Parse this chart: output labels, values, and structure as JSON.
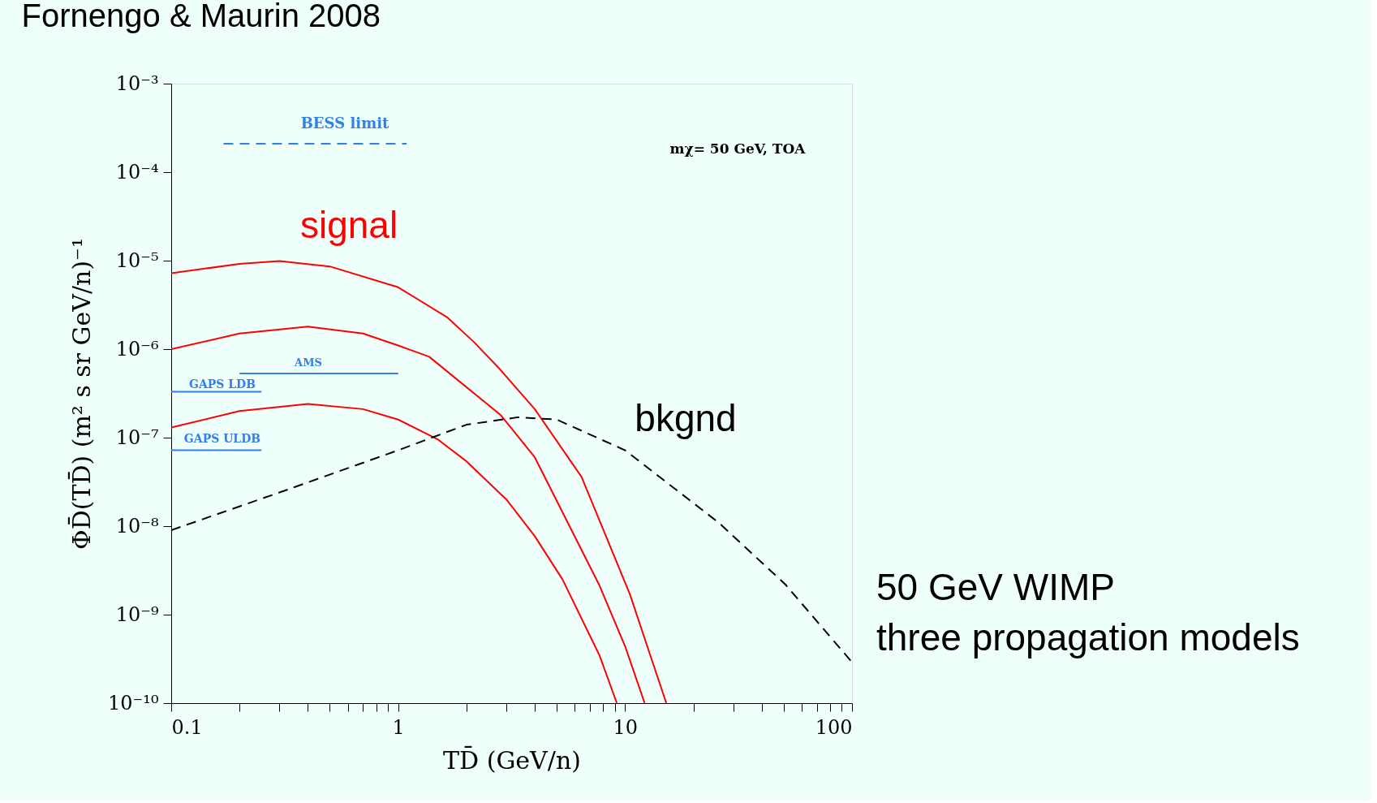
{
  "chart_data": {
    "type": "line",
    "title": "Fornengo & Maurin 2008",
    "xlabel": "TD̄  (GeV/n)",
    "ylabel": "ΦD̄(TD̄)   (m² s sr GeV/n)⁻¹",
    "log": "xy",
    "grid": false,
    "marker": "none",
    "xlim": [
      0.1,
      100
    ],
    "ylim": [
      1e-10,
      0.001
    ],
    "xticks": [
      0.1,
      {
        "value": 0.2,
        "label": null
      },
      {
        "value": 0.3,
        "label": null
      },
      {
        "value": 0.4,
        "label": null
      },
      {
        "value": 0.5,
        "label": null
      },
      {
        "value": 0.6,
        "label": null
      },
      {
        "value": 0.7,
        "label": null
      },
      {
        "value": 0.8,
        "label": null
      },
      {
        "value": 0.9,
        "label": null
      },
      1,
      {
        "value": 2,
        "label": null
      },
      {
        "value": 3,
        "label": null
      },
      {
        "value": 4,
        "label": null
      },
      {
        "value": 5,
        "label": null
      },
      {
        "value": 6,
        "label": null
      },
      {
        "value": 7,
        "label": null
      },
      {
        "value": 8,
        "label": null
      },
      {
        "value": 9,
        "label": null
      },
      10,
      {
        "value": 20,
        "label": null
      },
      {
        "value": 30,
        "label": null
      },
      {
        "value": 40,
        "label": null
      },
      {
        "value": 50,
        "label": null
      },
      {
        "value": 60,
        "label": null
      },
      {
        "value": 70,
        "label": null
      },
      {
        "value": 80,
        "label": null
      },
      {
        "value": 90,
        "label": null
      },
      100
    ],
    "yticks": [
      {
        "value": 1e-10,
        "label": "10⁻¹⁰"
      },
      {
        "value": 1e-09,
        "label": "10⁻⁹"
      },
      {
        "value": 1e-08,
        "label": "10⁻⁸"
      },
      {
        "value": 1e-07,
        "label": "10⁻⁷"
      },
      {
        "value": 1e-06,
        "label": "10⁻⁶"
      },
      {
        "value": 1e-05,
        "label": "10⁻⁵"
      },
      {
        "value": 0.0001,
        "label": "10⁻⁴"
      },
      {
        "value": 0.001,
        "label": "10⁻³"
      }
    ],
    "series": [
      {
        "color": "#ff0000",
        "line_style": "solid",
        "x": [
          0.1,
          0.2,
          0.3,
          0.5,
          1,
          1.64,
          2.16,
          2.83,
          4,
          6.43,
          10.5,
          13,
          15.2
        ],
        "values": [
          7.2e-06,
          9.2e-06,
          9.9e-06,
          8.6e-06,
          5e-06,
          2.3e-06,
          1.2e-06,
          5.8e-07,
          2.1e-07,
          3.6e-08,
          1.7e-09,
          3.3e-10,
          1e-10
        ]
      },
      {
        "color": "#ff0000",
        "line_style": "solid",
        "x": [
          0.1,
          0.2,
          0.4,
          0.7,
          1,
          1.37,
          2.83,
          4,
          7.67,
          10,
          12.2
        ],
        "values": [
          1e-06,
          1.5e-06,
          1.8e-06,
          1.5e-06,
          1.1e-06,
          8.2e-07,
          1.8e-07,
          6e-08,
          2.2e-09,
          4.4e-10,
          1e-10
        ]
      },
      {
        "color": "#ff0000",
        "line_style": "solid",
        "x": [
          0.1,
          0.2,
          0.4,
          0.7,
          1,
          1.5,
          2,
          3,
          4,
          5.3,
          7.7,
          9.2
        ],
        "values": [
          1.3e-07,
          2e-07,
          2.4e-07,
          2.1e-07,
          1.6e-07,
          9.5e-08,
          5.4e-08,
          2e-08,
          7.7e-09,
          2.5e-09,
          3.5e-10,
          1e-10
        ]
      },
      {
        "color": "#000000",
        "line_style": "dashed",
        "x": [
          0.1,
          0.3,
          1,
          2,
          3.38,
          5,
          10,
          25.8,
          50.8,
          100
        ],
        "values": [
          9e-09,
          2.4e-08,
          7.2e-08,
          1.4e-07,
          1.7e-07,
          1.6e-07,
          7.2e-08,
          1.1e-08,
          2.2e-09,
          2.9e-10
        ]
      },
      {
        "color": "#2f80ee",
        "line_style": "dashed",
        "x": [
          0.17,
          1.09
        ],
        "values": [
          0.00021,
          0.00021
        ]
      },
      {
        "color": "#2f80ee",
        "line_style": "solid",
        "x": [
          0.2,
          1.0
        ],
        "values": [
          5.3e-07,
          5.3e-07
        ]
      },
      {
        "color": "#2f80ee",
        "line_style": "solid",
        "x": [
          0.1,
          0.25
        ],
        "values": [
          3.3e-07,
          3.3e-07
        ]
      },
      {
        "color": "#2f80ee",
        "line_style": "solid",
        "x": [
          0.1,
          0.25
        ],
        "values": [
          7.2e-08,
          7.2e-08
        ]
      }
    ],
    "annotations": [
      "signal",
      "bkgnd",
      "BESS limit",
      "AMS",
      "GAPS LDB",
      "GAPS ULDB",
      "mχ= 50 GeV, TOA",
      "50 GeV WIMP\nthree propagation models"
    ]
  }
}
